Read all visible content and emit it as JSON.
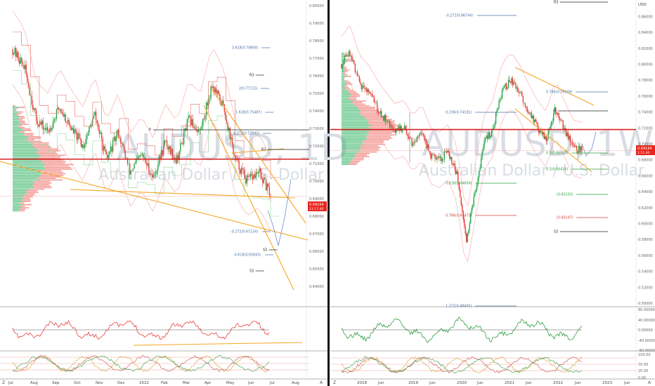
{
  "colors": {
    "up": "#26a64a",
    "down": "#e8413c",
    "hline": "#d92020",
    "trend": "#f5a623",
    "fib_blue": "#4a6fa5",
    "fib_green": "#2e9e3e",
    "fib_red": "#d9403a",
    "pivot": "#222222",
    "price_label_bg": "#e8251c"
  },
  "left_chart": {
    "watermark_symbol": "AUDUSD, 1D",
    "watermark_name": "Australian Dollar / U.S. Dollar",
    "price_label": "0.69164",
    "price_sub": "11:17:40",
    "y_ticks": [
      "0.80000",
      "0.79000",
      "0.78000",
      "0.77000",
      "0.76000",
      "0.75000",
      "0.74000",
      "0.73000",
      "0.72000",
      "0.71000",
      "0.70000",
      "0.69000",
      "0.68000",
      "0.67000",
      "0.66000",
      "0.65000",
      "0.64000"
    ],
    "fib_labels": [
      {
        "text": "3.618(0.79800)",
        "color": "blue"
      },
      {
        "text": "R3",
        "color": "black"
      },
      {
        "text": "2(0.77115)",
        "color": "blue"
      },
      {
        "text": "1.618(0.75487)",
        "color": "blue"
      },
      {
        "text": "P",
        "color": "black"
      },
      {
        "text": "1.272(0.73995)",
        "color": "blue"
      },
      {
        "text": "R3",
        "color": "black"
      },
      {
        "text": "-0.272(0.67234)",
        "color": "blue"
      },
      {
        "text": "S3",
        "color": "black"
      },
      {
        "text": "-0.618(0.65843)",
        "color": "blue"
      },
      {
        "text": "S3",
        "color": "black"
      }
    ],
    "x_ticks": [
      "Jul",
      "Aug",
      "Sep",
      "Oct",
      "Nov",
      "Dec",
      "2022",
      "Feb",
      "Mar",
      "Apr",
      "May",
      "Jun",
      "Jul",
      "Aug"
    ]
  },
  "right_chart": {
    "watermark_symbol": "AUDUSD, 1W",
    "watermark_name": "Australian Dollar / U.S. Dollar",
    "currency": "USD",
    "price_label": "0.69164",
    "price_sub": "1:11:40",
    "y_ticks": [
      "0.86000",
      "0.84000",
      "0.82000",
      "0.80000",
      "0.78000",
      "0.76000",
      "0.74000",
      "0.72000",
      "0.70000",
      "0.68000",
      "0.66000",
      "0.64000",
      "0.62000",
      "0.60000",
      "0.58000",
      "0.56000",
      "0.54000",
      "0.52000",
      "0.50000"
    ],
    "fib_labels": [
      {
        "text": "R3",
        "color": "black"
      },
      {
        "text": "-0.272(0.86744)",
        "color": "blue"
      },
      {
        "text": "0.786(0.76509)",
        "color": "blue"
      },
      {
        "text": "P",
        "color": "black"
      },
      {
        "text": "0.236(0.74181)",
        "color": "blue"
      },
      {
        "text": "0.5(0.66927)",
        "color": "green"
      },
      {
        "text": "0.5(0.66416)",
        "color": "green"
      },
      {
        "text": "0.618(0.64604)",
        "color": "green"
      },
      {
        "text": "(0.63103)",
        "color": "green"
      },
      {
        "text": "0.786(0.60473)",
        "color": "red"
      },
      {
        "text": "(0.60147)",
        "color": "red"
      },
      {
        "text": "S3",
        "color": "black"
      },
      {
        "text": "1.272(0.48405)",
        "color": "blue"
      }
    ],
    "osc_ticks": [
      "80.00000",
      "40.00000",
      "0.00000",
      "-40.00000",
      "-80.00000"
    ],
    "stoch_ticks": [
      "100.00",
      "50.00",
      "25.00",
      "0.00"
    ],
    "x_ticks": [
      "2018",
      "Jun",
      "2019",
      "Jun",
      "2020",
      "Jun",
      "2021",
      "Jun",
      "2022",
      "Jun",
      "2023",
      "Jun"
    ]
  },
  "chart_data": [
    {
      "type": "line",
      "title": "AUDUSD, 1D",
      "xlabel": "",
      "ylabel": "",
      "ylim": [
        0.64,
        0.8
      ],
      "x": [
        "Jul",
        "Aug",
        "Sep",
        "Oct",
        "Nov",
        "Dec",
        "2022",
        "Feb",
        "Mar",
        "Apr",
        "May",
        "Jun"
      ],
      "series": [
        {
          "name": "AUDUSD",
          "values": [
            0.77,
            0.735,
            0.728,
            0.735,
            0.72,
            0.705,
            0.72,
            0.715,
            0.738,
            0.755,
            0.7,
            0.692
          ]
        }
      ]
    },
    {
      "type": "line",
      "title": "AUDUSD, 1W",
      "xlabel": "",
      "ylabel": "USD",
      "ylim": [
        0.5,
        0.87
      ],
      "x": [
        "2018",
        "Jun",
        "2019",
        "Jun",
        "2020",
        "Jun",
        "2021",
        "Jun",
        "2022",
        "Jun"
      ],
      "series": [
        {
          "name": "AUDUSD",
          "values": [
            0.79,
            0.74,
            0.71,
            0.69,
            0.67,
            0.71,
            0.77,
            0.74,
            0.72,
            0.692
          ]
        }
      ]
    }
  ]
}
